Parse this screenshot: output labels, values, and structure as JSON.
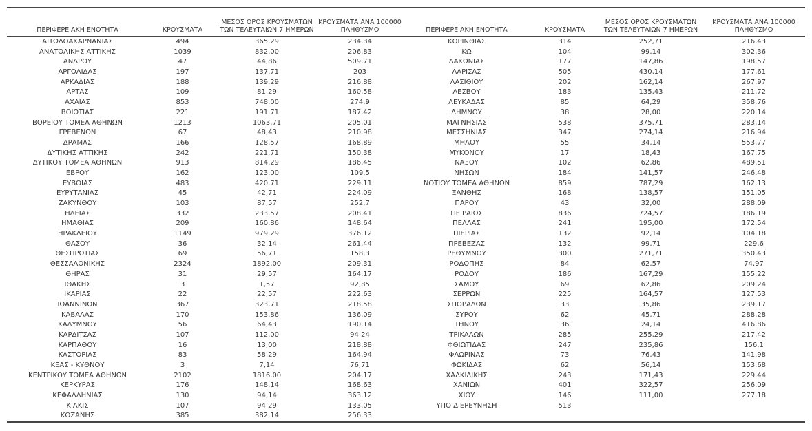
{
  "table": {
    "headers": {
      "region": "ΠΕΡΙΦΕΡΕΙΑΚΗ ΕΝΟΤΗΤΑ",
      "cases": "ΚΡΟΥΣΜΑΤΑ",
      "avg7_line1": "ΜΕΣΟΣ ΟΡΟΣ ΚΡΟΥΣΜΑΤΩΝ",
      "avg7_line2": "ΤΩΝ ΤΕΛΕΥΤΑΙΩΝ 7 ΗΜΕΡΩΝ",
      "per100k_line1": "ΚΡΟΥΣΜΑΤΑ ΑΝΑ 100000",
      "per100k_line2": "ΠΛΗΘΥΣΜΟ"
    },
    "colors": {
      "background": "#ffffff",
      "text": "#3a3a3a",
      "rule": "#454545"
    },
    "left_rows": [
      [
        "ΑΙΤΩΛΟΑΚΑΡΝΑΝΙΑΣ",
        "494",
        "365,29",
        "234,34"
      ],
      [
        "ΑΝΑΤΟΛΙΚΗΣ ΑΤΤΙΚΗΣ",
        "1039",
        "832,00",
        "206,83"
      ],
      [
        "ΑΝΔΡΟΥ",
        "47",
        "44,86",
        "509,71"
      ],
      [
        "ΑΡΓΟΛΙΔΑΣ",
        "197",
        "137,71",
        "203"
      ],
      [
        "ΑΡΚΑΔΙΑΣ",
        "188",
        "139,29",
        "216,88"
      ],
      [
        "ΑΡΤΑΣ",
        "109",
        "81,29",
        "160,58"
      ],
      [
        "ΑΧΑΪΑΣ",
        "853",
        "748,00",
        "274,9"
      ],
      [
        "ΒΟΙΩΤΙΑΣ",
        "221",
        "191,71",
        "187,42"
      ],
      [
        "ΒΟΡΕΙΟΥ ΤΟΜΕΑ ΑΘΗΝΩΝ",
        "1213",
        "1063,71",
        "205,01"
      ],
      [
        "ΓΡΕΒΕΝΩΝ",
        "67",
        "48,43",
        "210,98"
      ],
      [
        "ΔΡΑΜΑΣ",
        "166",
        "128,57",
        "168,89"
      ],
      [
        "ΔΥΤΙΚΗΣ ΑΤΤΙΚΗΣ",
        "242",
        "221,71",
        "150,38"
      ],
      [
        "ΔΥΤΙΚΟΥ ΤΟΜΕΑ ΑΘΗΝΩΝ",
        "913",
        "814,29",
        "186,45"
      ],
      [
        "ΕΒΡΟΥ",
        "162",
        "123,00",
        "109,5"
      ],
      [
        "ΕΥΒΟΙΑΣ",
        "483",
        "420,71",
        "229,11"
      ],
      [
        "ΕΥΡΥΤΑΝΙΑΣ",
        "45",
        "42,71",
        "224,09"
      ],
      [
        "ΖΑΚΥΝΘΟΥ",
        "103",
        "87,57",
        "252,7"
      ],
      [
        "ΗΛΕΙΑΣ",
        "332",
        "233,57",
        "208,41"
      ],
      [
        "ΗΜΑΘΙΑΣ",
        "209",
        "160,86",
        "148,64"
      ],
      [
        "ΗΡΑΚΛΕΙΟΥ",
        "1149",
        "979,29",
        "376,12"
      ],
      [
        "ΘΑΣΟΥ",
        "36",
        "32,14",
        "261,44"
      ],
      [
        "ΘΕΣΠΡΩΤΙΑΣ",
        "69",
        "56,71",
        "158,3"
      ],
      [
        "ΘΕΣΣΑΛΟΝΙΚΗΣ",
        "2324",
        "1892,00",
        "209,31"
      ],
      [
        "ΘΗΡΑΣ",
        "31",
        "29,57",
        "164,17"
      ],
      [
        "ΙΘΑΚΗΣ",
        "3",
        "1,57",
        "92,85"
      ],
      [
        "ΙΚΑΡΙΑΣ",
        "22",
        "22,57",
        "222,63"
      ],
      [
        "ΙΩΑΝΝΙΝΩΝ",
        "367",
        "323,71",
        "218,58"
      ],
      [
        "ΚΑΒΑΛΑΣ",
        "170",
        "153,86",
        "136,09"
      ],
      [
        "ΚΑΛΥΜΝΟΥ",
        "56",
        "64,43",
        "190,14"
      ],
      [
        "ΚΑΡΔΙΤΣΑΣ",
        "107",
        "112,00",
        "94,24"
      ],
      [
        "ΚΑΡΠΑΘΟΥ",
        "16",
        "13,00",
        "218,88"
      ],
      [
        "ΚΑΣΤΟΡΙΑΣ",
        "83",
        "58,29",
        "164,94"
      ],
      [
        "ΚΕΑΣ - ΚΥΘΝΟΥ",
        "3",
        "7,14",
        "76,71"
      ],
      [
        "ΚΕΝΤΡΙΚΟΥ ΤΟΜΕΑ ΑΘΗΝΩΝ",
        "2102",
        "1816,00",
        "204,17"
      ],
      [
        "ΚΕΡΚΥΡΑΣ",
        "176",
        "148,14",
        "168,63"
      ],
      [
        "ΚΕΦΑΛΛΗΝΙΑΣ",
        "130",
        "94,14",
        "363,12"
      ],
      [
        "ΚΙΛΚΙΣ",
        "107",
        "94,29",
        "133,05"
      ],
      [
        "ΚΟΖΑΝΗΣ",
        "385",
        "382,14",
        "256,33"
      ]
    ],
    "right_rows": [
      [
        "ΚΟΡΙΝΘΙΑΣ",
        "314",
        "252,71",
        "216,43"
      ],
      [
        "ΚΩ",
        "104",
        "99,14",
        "302,36"
      ],
      [
        "ΛΑΚΩΝΙΑΣ",
        "177",
        "147,86",
        "198,57"
      ],
      [
        "ΛΑΡΙΣΑΣ",
        "505",
        "430,14",
        "177,61"
      ],
      [
        "ΛΑΣΙΘΙΟΥ",
        "202",
        "162,14",
        "267,97"
      ],
      [
        "ΛΕΣΒΟΥ",
        "183",
        "135,43",
        "211,72"
      ],
      [
        "ΛΕΥΚΑΔΑΣ",
        "85",
        "64,29",
        "358,76"
      ],
      [
        "ΛΗΜΝΟΥ",
        "38",
        "28,00",
        "220,14"
      ],
      [
        "ΜΑΓΝΗΣΙΑΣ",
        "538",
        "375,71",
        "283,14"
      ],
      [
        "ΜΕΣΣΗΝΙΑΣ",
        "347",
        "274,14",
        "216,94"
      ],
      [
        "ΜΗΛΟΥ",
        "55",
        "34,14",
        "553,77"
      ],
      [
        "ΜΥΚΟΝΟΥ",
        "17",
        "18,43",
        "167,75"
      ],
      [
        "ΝΑΞΟΥ",
        "102",
        "62,86",
        "489,51"
      ],
      [
        "ΝΗΣΩΝ",
        "184",
        "141,57",
        "246,48"
      ],
      [
        "ΝΟΤΙΟΥ ΤΟΜΕΑ ΑΘΗΝΩΝ",
        "859",
        "787,29",
        "162,13"
      ],
      [
        "ΞΑΝΘΗΣ",
        "168",
        "138,57",
        "151,05"
      ],
      [
        "ΠΑΡΟΥ",
        "43",
        "32,00",
        "288,09"
      ],
      [
        "ΠΕΙΡΑΙΩΣ",
        "836",
        "724,57",
        "186,19"
      ],
      [
        "ΠΕΛΛΑΣ",
        "241",
        "195,00",
        "172,54"
      ],
      [
        "ΠΙΕΡΙΑΣ",
        "132",
        "92,14",
        "104,18"
      ],
      [
        "ΠΡΕΒΕΖΑΣ",
        "132",
        "99,71",
        "229,6"
      ],
      [
        "ΡΕΘΥΜΝΟΥ",
        "300",
        "271,71",
        "350,43"
      ],
      [
        "ΡΟΔΟΠΗΣ",
        "84",
        "62,57",
        "74,97"
      ],
      [
        "ΡΟΔΟΥ",
        "186",
        "167,29",
        "155,22"
      ],
      [
        "ΣΑΜΟΥ",
        "69",
        "62,86",
        "209,24"
      ],
      [
        "ΣΕΡΡΩΝ",
        "225",
        "164,57",
        "127,53"
      ],
      [
        "ΣΠΟΡΑΔΩΝ",
        "33",
        "35,86",
        "239,17"
      ],
      [
        "ΣΥΡΟΥ",
        "62",
        "45,71",
        "288,28"
      ],
      [
        "ΤΗΝΟΥ",
        "36",
        "24,14",
        "416,86"
      ],
      [
        "ΤΡΙΚΑΛΩΝ",
        "285",
        "255,29",
        "217,42"
      ],
      [
        "ΦΘΙΩΤΙΔΑΣ",
        "247",
        "235,86",
        "156,1"
      ],
      [
        "ΦΛΩΡΙΝΑΣ",
        "73",
        "76,43",
        "141,98"
      ],
      [
        "ΦΩΚΙΔΑΣ",
        "62",
        "56,14",
        "153,68"
      ],
      [
        "ΧΑΛΚΙΔΙΚΗΣ",
        "243",
        "171,43",
        "229,44"
      ],
      [
        "ΧΑΝΙΩΝ",
        "401",
        "322,57",
        "256,09"
      ],
      [
        "ΧΙΟΥ",
        "146",
        "111,00",
        "277,18"
      ],
      [
        "ΥΠΟ ΔΙΕΡΕΥΝΗΣΗ",
        "513",
        "",
        ""
      ]
    ]
  }
}
